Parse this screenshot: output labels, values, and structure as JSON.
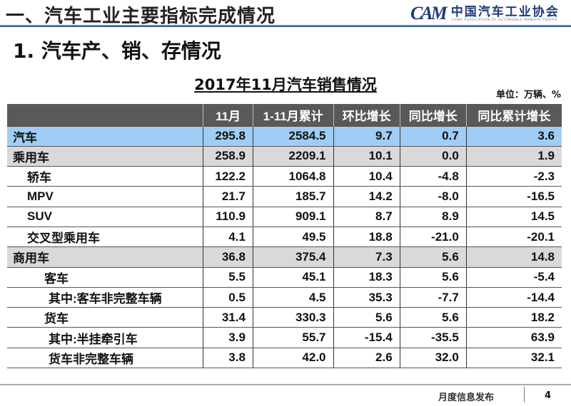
{
  "header": {
    "title": "一、汽车工业主要指标完成情况",
    "logo": {
      "mark": "CAM",
      "cn": "中国汽车工业协会",
      "en": "CHINA ASSOCIATION OF AUTOMOBILE MANUFACTURERS"
    },
    "accent": "#2a4f92"
  },
  "section_title": "1. 汽车产、销、存情况",
  "table_title": "2017年11月汽车销售情况",
  "unit": "单位：万辆、%",
  "table": {
    "columns": [
      "",
      "11月",
      "1-11月累计",
      "环比增长",
      "同比增长",
      "同比累计增长"
    ],
    "rows": [
      {
        "label": "汽车",
        "level": 0,
        "values": [
          "295.8",
          "2584.5",
          "9.7",
          "0.7",
          "3.6"
        ]
      },
      {
        "label": "乘用车",
        "level": 1,
        "values": [
          "258.9",
          "2209.1",
          "10.1",
          "0.0",
          "1.9"
        ]
      },
      {
        "label": "轿车",
        "level": 2,
        "values": [
          "122.2",
          "1064.8",
          "10.4",
          "-4.8",
          "-2.3"
        ]
      },
      {
        "label": "MPV",
        "level": 2,
        "values": [
          "21.7",
          "185.7",
          "14.2",
          "-8.0",
          "-16.5"
        ]
      },
      {
        "label": "SUV",
        "level": 2,
        "values": [
          "110.9",
          "909.1",
          "8.7",
          "8.9",
          "14.5"
        ]
      },
      {
        "label": "交叉型乘用车",
        "level": 2,
        "values": [
          "4.1",
          "49.5",
          "18.8",
          "-21.0",
          "-20.1"
        ]
      },
      {
        "label": "商用车",
        "level": 1,
        "values": [
          "36.8",
          "375.4",
          "7.3",
          "5.6",
          "14.8"
        ]
      },
      {
        "label": "客车",
        "level": 3,
        "values": [
          "5.5",
          "45.1",
          "18.3",
          "5.6",
          "-5.4"
        ]
      },
      {
        "label": "其中:客车非完整车辆",
        "level": 4,
        "values": [
          "0.5",
          "4.5",
          "35.3",
          "-7.7",
          "-14.4"
        ]
      },
      {
        "label": "货车",
        "level": 3,
        "values": [
          "31.4",
          "330.3",
          "5.6",
          "5.6",
          "18.2"
        ]
      },
      {
        "label": "其中:半挂牵引车",
        "level": 4,
        "values": [
          "3.9",
          "55.7",
          "-15.4",
          "-35.5",
          "63.9"
        ]
      },
      {
        "label": "货车非完整车辆",
        "level": 4,
        "values": [
          "3.8",
          "42.0",
          "2.6",
          "32.0",
          "32.1"
        ]
      }
    ]
  },
  "footer": {
    "text": "月度信息发布",
    "page": "4"
  }
}
